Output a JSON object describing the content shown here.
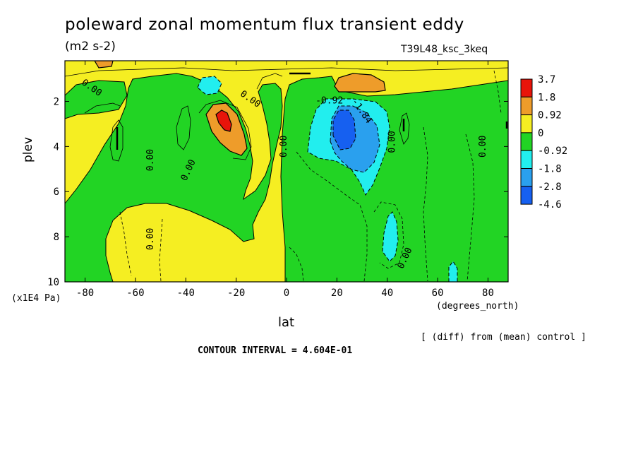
{
  "chart_data": {
    "type": "heatmap",
    "title": "poleward zonal momentum flux transient eddy",
    "units": "(m2 s-2)",
    "run_label": "T39L48_ksc_3keq",
    "xlabel": "lat",
    "xunit": "(degrees_north)",
    "ylabel": "plev",
    "yunit": "(x1E4 Pa)",
    "xlim": [
      -88,
      88
    ],
    "ylim": [
      0.2,
      10
    ],
    "y_inverted": true,
    "x_ticks": [
      -80,
      -60,
      -40,
      -20,
      0,
      20,
      40,
      60,
      80
    ],
    "y_ticks": [
      2,
      4,
      6,
      8,
      10
    ],
    "note": "[ (diff) from (mean) control ]",
    "contour_interval_text": "CONTOUR INTERVAL = 4.604E-01",
    "colorbar": {
      "levels": [
        "3.7",
        "1.8",
        "0.92",
        "0",
        "-0.92",
        "-1.8",
        "-2.8",
        "-4.6"
      ],
      "colors": [
        "#e8140a",
        "#ee9c2a",
        "#f5ee22",
        "#22d424",
        "#22eeee",
        "#2aa0ee",
        "#1660f0"
      ]
    },
    "contour_labels": [
      {
        "text": "0.00",
        "x": -78,
        "y": 1.5
      },
      {
        "text": "0.00",
        "x": -53,
        "y": 4.6
      },
      {
        "text": "0.00",
        "x": -53,
        "y": 8.1
      },
      {
        "text": "0.00",
        "x": -38,
        "y": 5.1
      },
      {
        "text": "0.00",
        "x": -15,
        "y": 2.0
      },
      {
        "text": "0.00",
        "x": 0,
        "y": 4.0
      },
      {
        "text": "-0.92",
        "x": 17,
        "y": 2.1
      },
      {
        "text": "-1.84",
        "x": 29,
        "y": 2.5
      },
      {
        "text": "0.00",
        "x": 43,
        "y": 3.8
      },
      {
        "text": "0.00",
        "x": 48,
        "y": 9.0
      },
      {
        "text": "0.00",
        "x": 79,
        "y": 4.0
      }
    ]
  }
}
